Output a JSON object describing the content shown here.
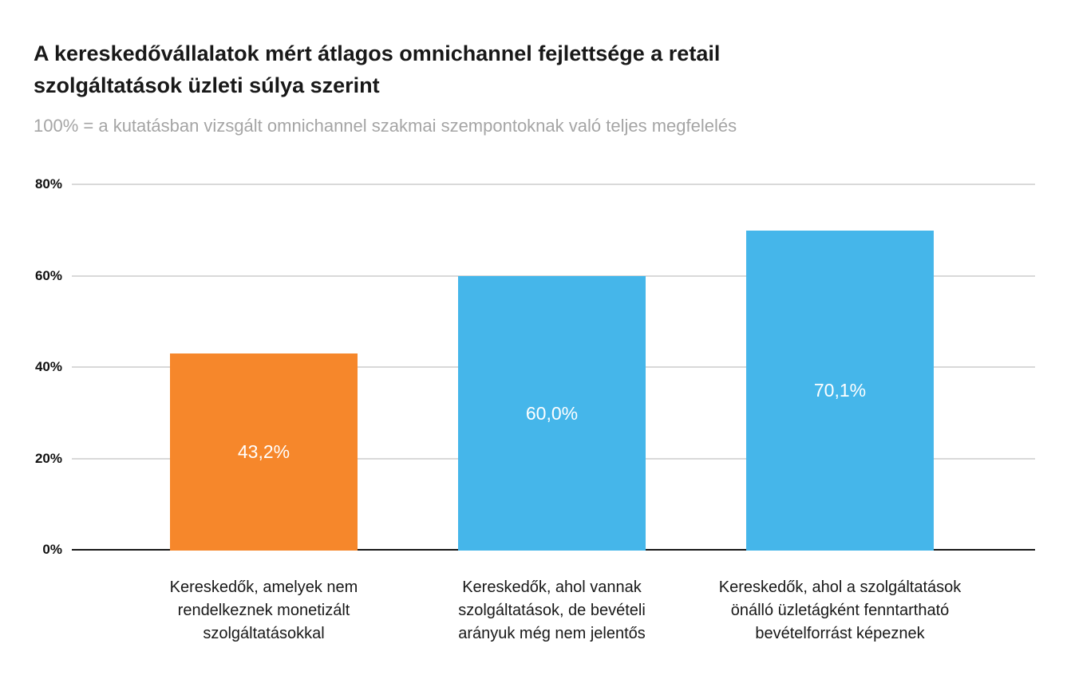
{
  "header": {
    "title": "A kereskedővállalatok mért átlagos omnichannel fejlettsége a retail\nszolgáltatások üzleti súlya szerint",
    "subtitle": "100% = a kutatásban vizsgált omnichannel szakmai szempontoknak való teljes megfelelés"
  },
  "chart_data": {
    "type": "bar",
    "title": "A kereskedővállalatok mért átlagos omnichannel fejlettsége a retail szolgáltatások üzleti súlya szerint",
    "subtitle": "100% = a kutatásban vizsgált omnichannel szakmai szempontoknak való teljes megfelelés",
    "categories": [
      "Kereskedők, amelyek nem rendelkeznek monetizált szolgáltatásokkal",
      "Kereskedők, ahol vannak szolgáltatások, de bevételi arányuk még nem jelentős",
      "Kereskedők, ahol a szolgáltatások önálló üzletágként fenntartható bevételforrást képeznek"
    ],
    "category_display": [
      "Kereskedők, amelyek nem\nrendelkeznek monetizált\nszolgáltatásokkal",
      "Kereskedők, ahol vannak\nszolgáltatások, de bevételi\narányuk még nem jelentős",
      "Kereskedők, ahol a szolgáltatások\nönálló üzletágként fenntartható\nbevételforrást képeznek"
    ],
    "values": [
      43.2,
      60.0,
      70.1
    ],
    "value_labels": [
      "43,2%",
      "60,0%",
      "70,1%"
    ],
    "bar_colors": [
      "#F6872B",
      "#45B6EA",
      "#45B6EA"
    ],
    "xlabel": "",
    "ylabel": "",
    "ylim": [
      0,
      80
    ],
    "yticks": [
      "0%",
      "20%",
      "40%",
      "60%",
      "80%"
    ],
    "grid": true,
    "legend": "none",
    "value_label_position": "inside-center",
    "value_label_color": "#ffffff"
  },
  "colors": {
    "background": "#ffffff",
    "orange_bar": "#F6872B",
    "blue_bar": "#45B6EA",
    "gridline": "#d9d9d9",
    "axis_line": "#181818",
    "title_text": "#181818",
    "subtitle_text": "#a5a5a5",
    "tick_text": "#111111"
  }
}
